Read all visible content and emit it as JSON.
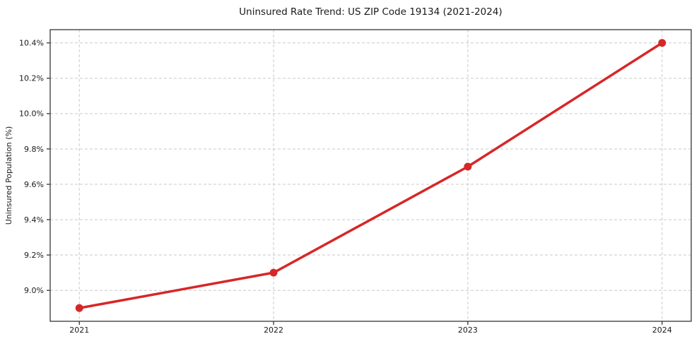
{
  "chart_data": {
    "type": "line",
    "title": "Uninsured Rate Trend: US ZIP Code 19134 (2021-2024)",
    "xlabel": "",
    "ylabel": "Uninsured Population (%)",
    "x": [
      2021,
      2022,
      2023,
      2024
    ],
    "x_tick_labels": [
      "2021",
      "2022",
      "2023",
      "2024"
    ],
    "values": [
      8.9,
      9.1,
      9.7,
      10.4
    ],
    "y_ticks": [
      9.0,
      9.2,
      9.4,
      9.6,
      9.8,
      10.0,
      10.2,
      10.4
    ],
    "y_tick_labels": [
      "9.0%",
      "9.2%",
      "9.4%",
      "9.6%",
      "9.8%",
      "10.0%",
      "10.2%",
      "10.4%"
    ],
    "xlim": [
      2020.85,
      2024.15
    ],
    "ylim": [
      8.825,
      10.475
    ],
    "grid": true,
    "legend": false,
    "marker": "circle",
    "line_color": "#d62728",
    "grid_color": "#c9c9c9",
    "axis_color": "#262626",
    "background_color": "#ffffff"
  }
}
